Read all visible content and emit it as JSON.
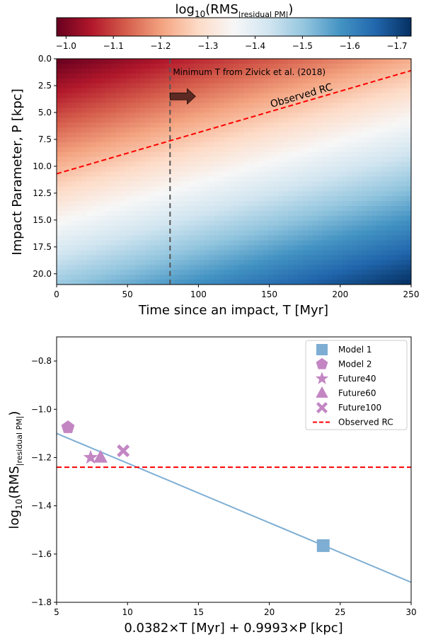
{
  "chart_data": [
    {
      "type": "heatmap",
      "colorbar": {
        "title_main": "log",
        "title_sub": "10",
        "title_paren": "(RMS",
        "title_subscript": "|residual PM|",
        "title_close": ")",
        "ticks": [
          -1.0,
          -1.1,
          -1.2,
          -1.3,
          -1.4,
          -1.5,
          -1.6,
          -1.7
        ],
        "tick_labels": [
          "−1.0",
          "−1.1",
          "−1.2",
          "−1.3",
          "−1.4",
          "−1.5",
          "−1.6",
          "−1.7"
        ],
        "range": [
          -0.98,
          -1.73
        ],
        "colormap": "RdBu"
      },
      "field": {
        "coef_T": 0.0382,
        "coef_P": 0.9993,
        "slope": -0.0247,
        "intercept": -0.9775
      },
      "xlabel": "Time since an impact, T [Myr]",
      "ylabel": "Impact Parameter, P [kpc]",
      "xlim": [
        0,
        250
      ],
      "ylim": [
        21,
        0
      ],
      "xticks": [
        0,
        50,
        100,
        150,
        200,
        250
      ],
      "xtick_labels": [
        "0",
        "50",
        "100",
        "150",
        "200",
        "250"
      ],
      "yticks": [
        0.0,
        2.5,
        5.0,
        7.5,
        10.0,
        12.5,
        15.0,
        17.5,
        20.0
      ],
      "ytick_labels": [
        "0.0",
        "2.5",
        "5.0",
        "7.5",
        "10.0",
        "12.5",
        "15.0",
        "17.5",
        "20.0"
      ],
      "observed_rc_line": {
        "label": "Observed RC",
        "color": "#ff0000",
        "x": [
          0,
          250
        ],
        "y": [
          10.7,
          1.1
        ]
      },
      "vertical_line": {
        "x": 80,
        "color": "#555555"
      },
      "annotation": {
        "text": "Minimum T from Zivick et al. (2018)",
        "arrow_color": "#5c2a22"
      }
    },
    {
      "type": "scatter",
      "xlabel": "0.0382×T [Myr] + 0.9993×P [kpc]",
      "ylabel_main": "log",
      "ylabel_sub": "10",
      "ylabel_paren": "(RMS",
      "ylabel_subscript": "|residual PM|",
      "ylabel_close": ")",
      "xlim": [
        5,
        30
      ],
      "ylim": [
        -1.8,
        -0.7
      ],
      "xticks": [
        5,
        10,
        15,
        20,
        25,
        30
      ],
      "xtick_labels": [
        "5",
        "10",
        "15",
        "20",
        "25",
        "30"
      ],
      "yticks": [
        -1.8,
        -1.6,
        -1.4,
        -1.2,
        -1.0,
        -0.8
      ],
      "ytick_labels": [
        "−1.8",
        "−1.6",
        "−1.4",
        "−1.2",
        "−1.0",
        "−0.8"
      ],
      "series": [
        {
          "name": "Model 1",
          "marker": "square",
          "color": "#7eaed3",
          "points": [
            [
              23.8,
              -1.565
            ]
          ]
        },
        {
          "name": "Model 2",
          "marker": "pentagon",
          "color": "#c386c3",
          "points": [
            [
              5.8,
              -1.075
            ]
          ]
        },
        {
          "name": "Future40",
          "marker": "star",
          "color": "#c386c3",
          "points": [
            [
              7.4,
              -1.2
            ]
          ]
        },
        {
          "name": "Future60",
          "marker": "triangle",
          "color": "#c386c3",
          "points": [
            [
              8.1,
              -1.2
            ]
          ]
        },
        {
          "name": "Future100",
          "marker": "x",
          "color": "#c386c3",
          "points": [
            [
              9.7,
              -1.172
            ]
          ]
        }
      ],
      "fit_line": {
        "color": "#7eaed3",
        "x": [
          5,
          30
        ],
        "y": [
          -1.1,
          -1.717
        ]
      },
      "observed_rc": {
        "name": "Observed RC",
        "color": "#ff0000",
        "y": -1.24
      },
      "legend": {
        "placement": "top-right"
      }
    }
  ]
}
